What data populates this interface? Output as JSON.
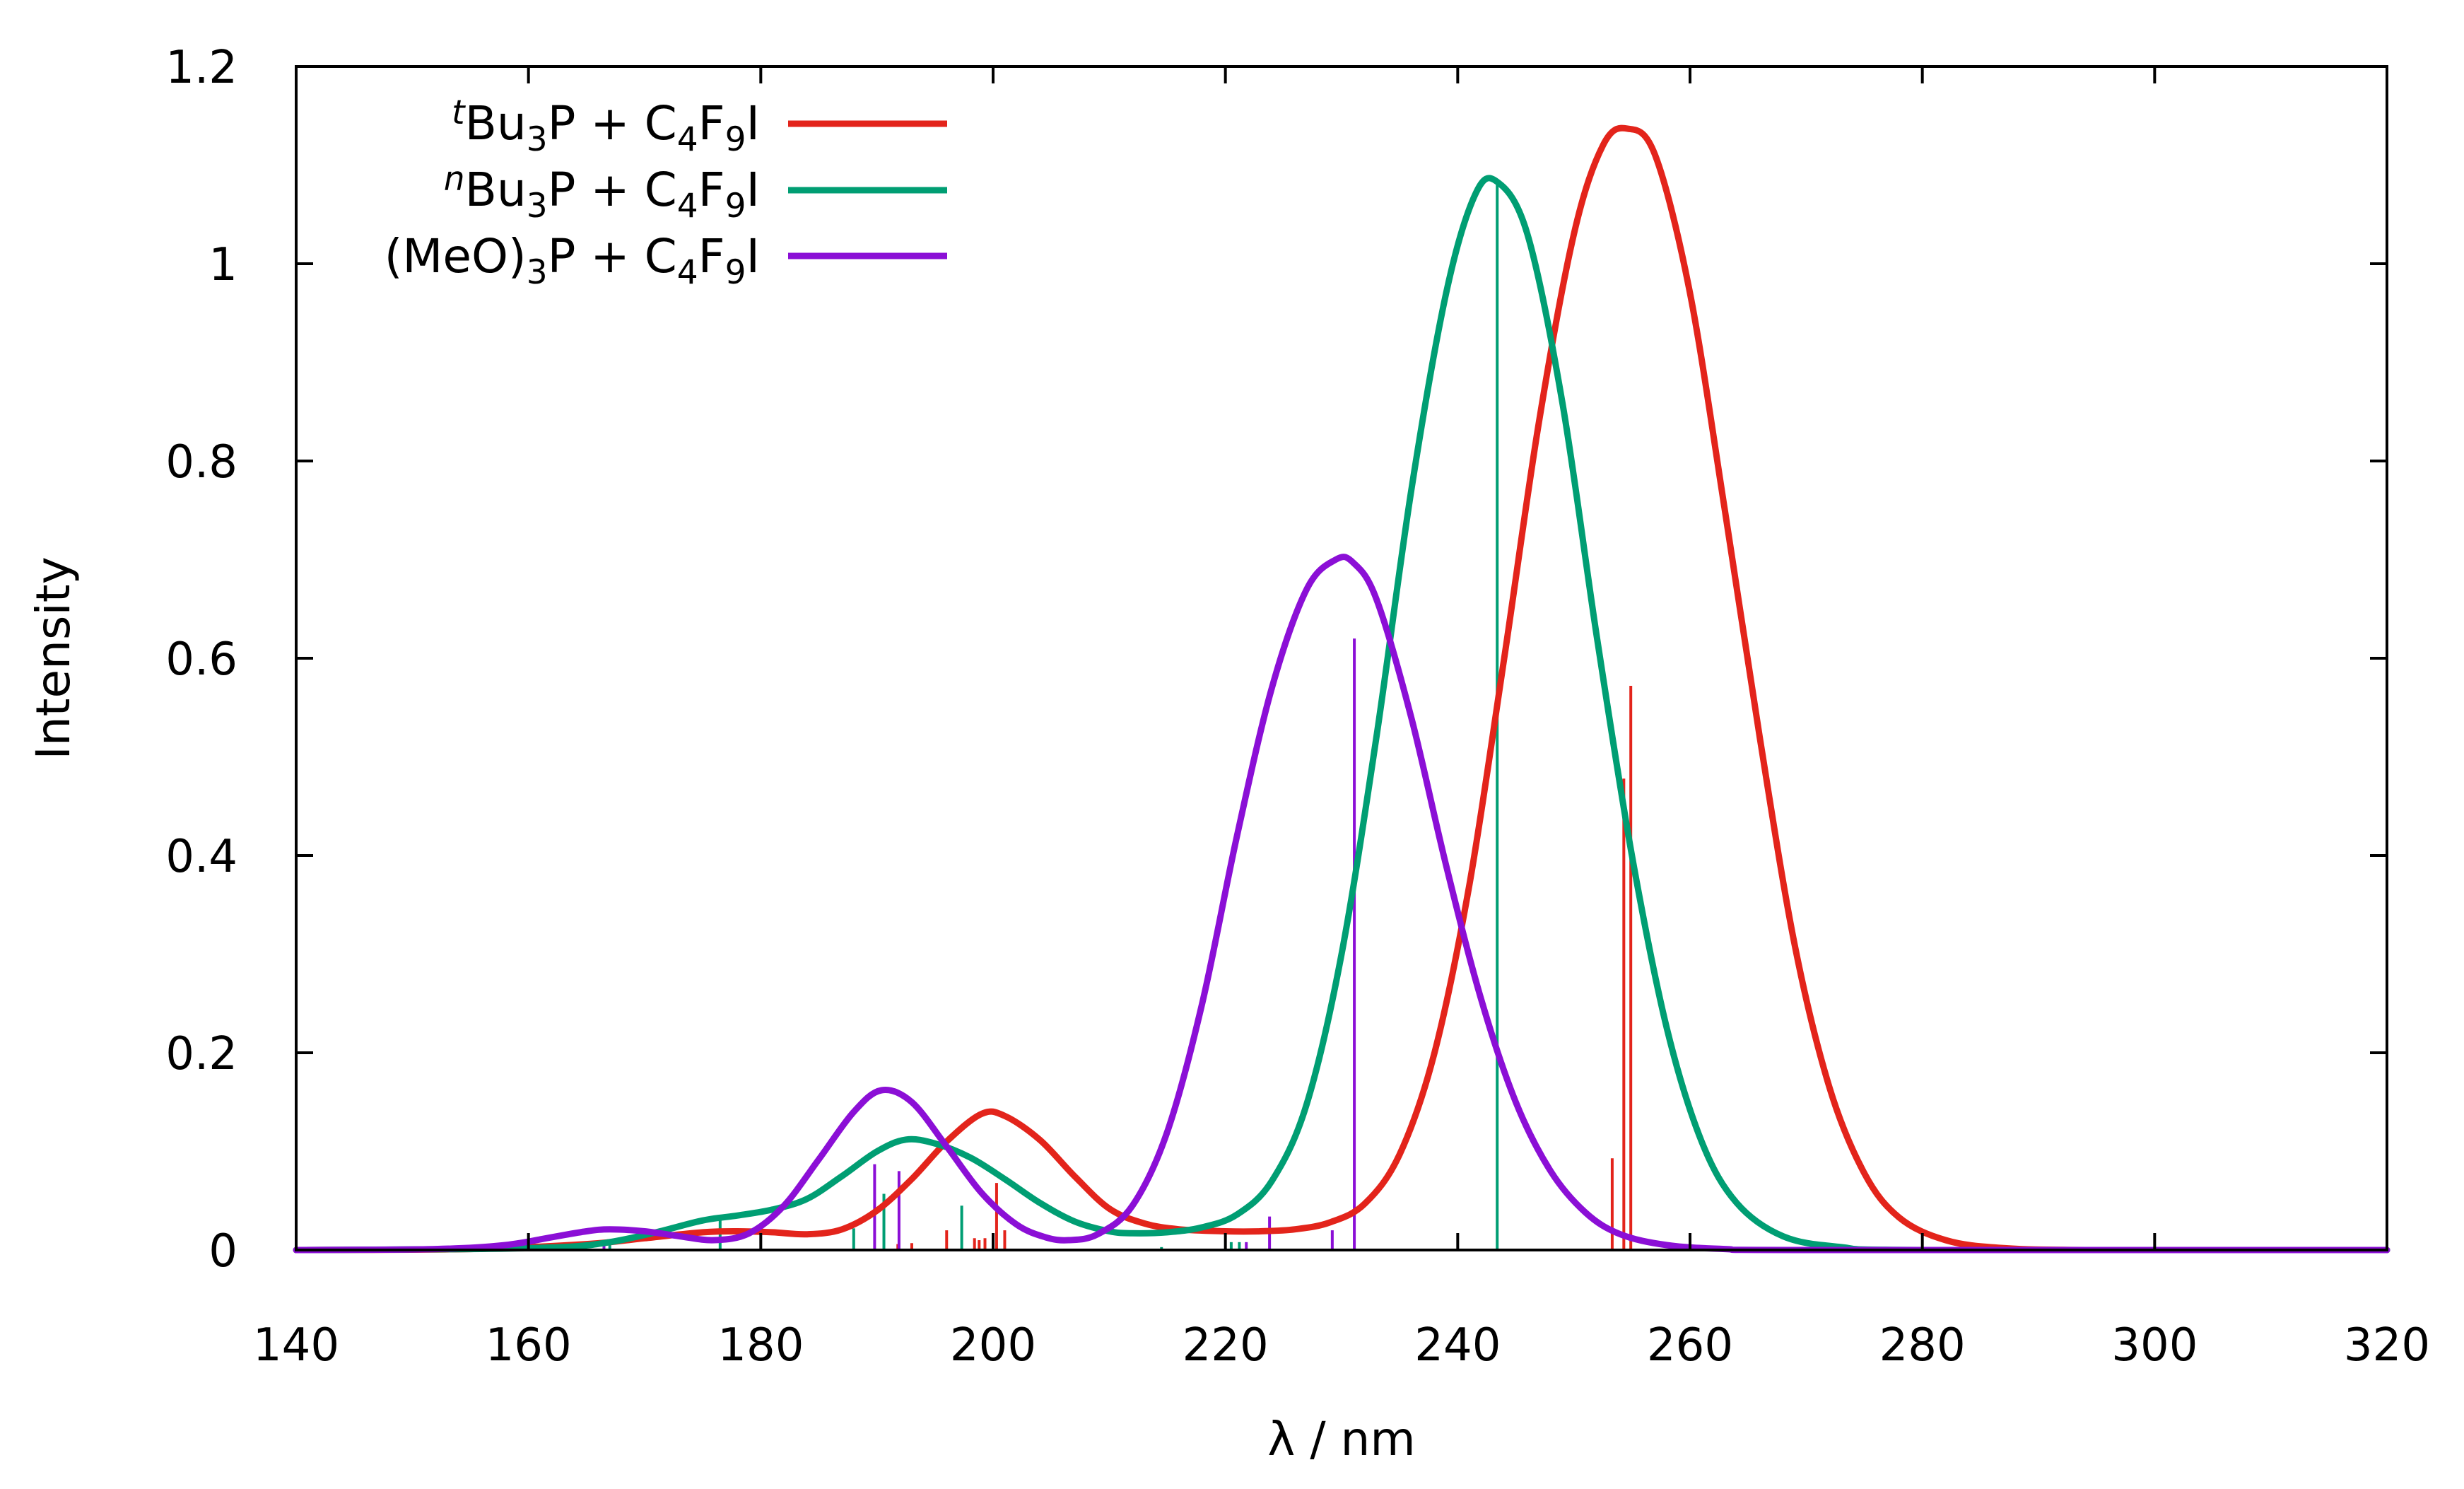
{
  "chart_data": {
    "type": "line",
    "title": "",
    "xlabel": "λ / nm",
    "ylabel": "Intensity",
    "xlim": [
      140,
      320
    ],
    "ylim": [
      0,
      1.2
    ],
    "x_ticks": [
      "140",
      "160",
      "180",
      "200",
      "220",
      "240",
      "260",
      "280",
      "300",
      "320"
    ],
    "y_ticks": [
      "0",
      "0.2",
      "0.4",
      "0.6",
      "0.8",
      "1",
      "1.2"
    ],
    "legend_placement": "top-left",
    "series": [
      {
        "name": "tBu3P + C4F9I",
        "legend": {
          "sup": "t",
          "a": "Bu",
          "s1": "3",
          "b": "P + C",
          "s2": "4",
          "c": "F",
          "s3": "9",
          "d": "I"
        },
        "color": "#e3241b",
        "curve": [
          {
            "x": 140,
            "y": 0
          },
          {
            "x": 155,
            "y": 0.001
          },
          {
            "x": 165,
            "y": 0.006
          },
          {
            "x": 170,
            "y": 0.012
          },
          {
            "x": 175,
            "y": 0.018
          },
          {
            "x": 178,
            "y": 0.019
          },
          {
            "x": 181,
            "y": 0.018
          },
          {
            "x": 184,
            "y": 0.016
          },
          {
            "x": 187,
            "y": 0.021
          },
          {
            "x": 190,
            "y": 0.04
          },
          {
            "x": 193,
            "y": 0.072
          },
          {
            "x": 196,
            "y": 0.11
          },
          {
            "x": 199,
            "y": 0.138
          },
          {
            "x": 201,
            "y": 0.136
          },
          {
            "x": 204,
            "y": 0.112
          },
          {
            "x": 207,
            "y": 0.075
          },
          {
            "x": 210,
            "y": 0.042
          },
          {
            "x": 213,
            "y": 0.027
          },
          {
            "x": 216,
            "y": 0.021
          },
          {
            "x": 220,
            "y": 0.019
          },
          {
            "x": 223,
            "y": 0.019
          },
          {
            "x": 226,
            "y": 0.021
          },
          {
            "x": 229,
            "y": 0.028
          },
          {
            "x": 232,
            "y": 0.047
          },
          {
            "x": 235,
            "y": 0.097
          },
          {
            "x": 238,
            "y": 0.2
          },
          {
            "x": 241,
            "y": 0.37
          },
          {
            "x": 244,
            "y": 0.6
          },
          {
            "x": 247,
            "y": 0.84
          },
          {
            "x": 250,
            "y": 1.03
          },
          {
            "x": 252.5,
            "y": 1.12
          },
          {
            "x": 254.6,
            "y": 1.137
          },
          {
            "x": 257,
            "y": 1.11
          },
          {
            "x": 260,
            "y": 0.97
          },
          {
            "x": 263,
            "y": 0.75
          },
          {
            "x": 266,
            "y": 0.52
          },
          {
            "x": 269,
            "y": 0.31
          },
          {
            "x": 272,
            "y": 0.165
          },
          {
            "x": 275,
            "y": 0.078
          },
          {
            "x": 278,
            "y": 0.033
          },
          {
            "x": 282,
            "y": 0.01
          },
          {
            "x": 287,
            "y": 0.002
          },
          {
            "x": 295,
            "y": 0
          },
          {
            "x": 320,
            "y": 0
          }
        ],
        "sticks": [
          {
            "x": 191.8,
            "y": 0.006
          },
          {
            "x": 193.0,
            "y": 0.007
          },
          {
            "x": 196.0,
            "y": 0.02
          },
          {
            "x": 198.4,
            "y": 0.012
          },
          {
            "x": 198.8,
            "y": 0.01
          },
          {
            "x": 199.3,
            "y": 0.012
          },
          {
            "x": 200.3,
            "y": 0.068
          },
          {
            "x": 201.0,
            "y": 0.02
          },
          {
            "x": 253.3,
            "y": 0.093
          },
          {
            "x": 254.3,
            "y": 0.478
          },
          {
            "x": 254.9,
            "y": 0.572
          }
        ]
      },
      {
        "name": "nBu3P + C4F9I",
        "legend": {
          "sup": "n",
          "a": "Bu",
          "s1": "3",
          "b": "P + C",
          "s2": "4",
          "c": "F",
          "s3": "9",
          "d": "I"
        },
        "color": "#009e73",
        "curve": [
          {
            "x": 140,
            "y": 0
          },
          {
            "x": 155,
            "y": 0.001
          },
          {
            "x": 163,
            "y": 0.003
          },
          {
            "x": 167,
            "y": 0.008
          },
          {
            "x": 171,
            "y": 0.018
          },
          {
            "x": 175,
            "y": 0.03
          },
          {
            "x": 178,
            "y": 0.035
          },
          {
            "x": 181,
            "y": 0.041
          },
          {
            "x": 184,
            "y": 0.052
          },
          {
            "x": 187,
            "y": 0.075
          },
          {
            "x": 190,
            "y": 0.1
          },
          {
            "x": 192.5,
            "y": 0.112
          },
          {
            "x": 195,
            "y": 0.108
          },
          {
            "x": 198,
            "y": 0.094
          },
          {
            "x": 201,
            "y": 0.072
          },
          {
            "x": 204,
            "y": 0.048
          },
          {
            "x": 207,
            "y": 0.029
          },
          {
            "x": 210,
            "y": 0.019
          },
          {
            "x": 212,
            "y": 0.017
          },
          {
            "x": 215,
            "y": 0.018
          },
          {
            "x": 218,
            "y": 0.023
          },
          {
            "x": 221,
            "y": 0.036
          },
          {
            "x": 224,
            "y": 0.07
          },
          {
            "x": 227,
            "y": 0.148
          },
          {
            "x": 230,
            "y": 0.3
          },
          {
            "x": 233,
            "y": 0.52
          },
          {
            "x": 236,
            "y": 0.77
          },
          {
            "x": 239,
            "y": 0.97
          },
          {
            "x": 241.5,
            "y": 1.07
          },
          {
            "x": 243.4,
            "y": 1.083
          },
          {
            "x": 246,
            "y": 1.03
          },
          {
            "x": 249,
            "y": 0.86
          },
          {
            "x": 252,
            "y": 0.62
          },
          {
            "x": 255,
            "y": 0.4
          },
          {
            "x": 258,
            "y": 0.225
          },
          {
            "x": 261,
            "y": 0.11
          },
          {
            "x": 264,
            "y": 0.048
          },
          {
            "x": 268,
            "y": 0.014
          },
          {
            "x": 273,
            "y": 0.003
          },
          {
            "x": 280,
            "y": 0
          },
          {
            "x": 320,
            "y": 0
          }
        ],
        "sticks": [
          {
            "x": 167.0,
            "y": 0.007
          },
          {
            "x": 176.5,
            "y": 0.03
          },
          {
            "x": 188.0,
            "y": 0.022
          },
          {
            "x": 190.6,
            "y": 0.057
          },
          {
            "x": 197.3,
            "y": 0.045
          },
          {
            "x": 214.5,
            "y": 0.003
          },
          {
            "x": 220.5,
            "y": 0.008
          },
          {
            "x": 221.2,
            "y": 0.008
          },
          {
            "x": 243.4,
            "y": 1.083
          }
        ]
      },
      {
        "name": "(MeO)3P + C4F9I",
        "legend": {
          "sup": "",
          "a": "(MeO)",
          "s1": "3",
          "b": "P + C",
          "s2": "4",
          "c": "F",
          "s3": "9",
          "d": "I"
        },
        "color": "#8b0fd6",
        "curve": [
          {
            "x": 140,
            "y": 0
          },
          {
            "x": 152,
            "y": 0.001
          },
          {
            "x": 158,
            "y": 0.005
          },
          {
            "x": 162,
            "y": 0.013
          },
          {
            "x": 165,
            "y": 0.019
          },
          {
            "x": 167,
            "y": 0.021
          },
          {
            "x": 170,
            "y": 0.019
          },
          {
            "x": 173,
            "y": 0.014
          },
          {
            "x": 176,
            "y": 0.01
          },
          {
            "x": 179,
            "y": 0.017
          },
          {
            "x": 182,
            "y": 0.045
          },
          {
            "x": 185,
            "y": 0.092
          },
          {
            "x": 188,
            "y": 0.14
          },
          {
            "x": 190.4,
            "y": 0.162
          },
          {
            "x": 193,
            "y": 0.15
          },
          {
            "x": 196,
            "y": 0.105
          },
          {
            "x": 199,
            "y": 0.058
          },
          {
            "x": 202,
            "y": 0.026
          },
          {
            "x": 204.5,
            "y": 0.013
          },
          {
            "x": 206.5,
            "y": 0.01
          },
          {
            "x": 209,
            "y": 0.016
          },
          {
            "x": 212,
            "y": 0.045
          },
          {
            "x": 215,
            "y": 0.12
          },
          {
            "x": 218,
            "y": 0.25
          },
          {
            "x": 221,
            "y": 0.42
          },
          {
            "x": 224,
            "y": 0.57
          },
          {
            "x": 227,
            "y": 0.67
          },
          {
            "x": 229.5,
            "y": 0.7
          },
          {
            "x": 231,
            "y": 0.697
          },
          {
            "x": 233,
            "y": 0.66
          },
          {
            "x": 236,
            "y": 0.54
          },
          {
            "x": 239,
            "y": 0.39
          },
          {
            "x": 242,
            "y": 0.255
          },
          {
            "x": 245,
            "y": 0.15
          },
          {
            "x": 248,
            "y": 0.08
          },
          {
            "x": 251,
            "y": 0.038
          },
          {
            "x": 254,
            "y": 0.016
          },
          {
            "x": 258,
            "y": 0.005
          },
          {
            "x": 263,
            "y": 0.001
          },
          {
            "x": 270,
            "y": 0
          },
          {
            "x": 320,
            "y": 0
          }
        ],
        "sticks": [
          {
            "x": 166.5,
            "y": 0.007
          },
          {
            "x": 189.8,
            "y": 0.087
          },
          {
            "x": 191.9,
            "y": 0.08
          },
          {
            "x": 221.8,
            "y": 0.008
          },
          {
            "x": 223.8,
            "y": 0.034
          },
          {
            "x": 229.2,
            "y": 0.02
          },
          {
            "x": 231.1,
            "y": 0.62
          }
        ]
      }
    ]
  }
}
